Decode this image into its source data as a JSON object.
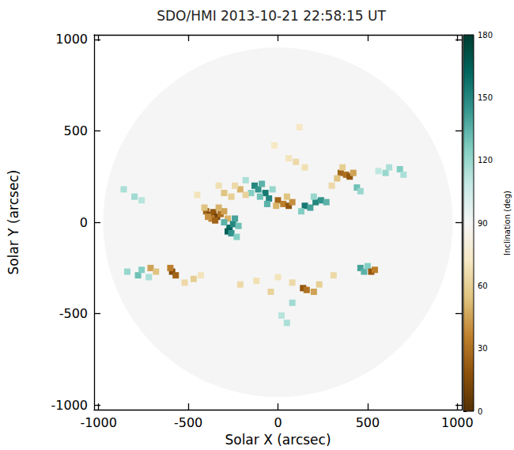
{
  "chart_data": {
    "type": "heatmap",
    "title": "SDO/HMI 2013-10-21 22:58:15 UT",
    "x_label": "Solar X (arcsec)",
    "y_label": "Solar Y (arcsec)",
    "xlim": [
      -1025,
      1025
    ],
    "ylim": [
      -1025,
      1025
    ],
    "xticks": [
      -1000,
      -500,
      0,
      500,
      1000
    ],
    "yticks": [
      -1000,
      -500,
      0,
      500,
      1000
    ],
    "disk": {
      "center": [
        0,
        0
      ],
      "radius": 965,
      "value": 90
    },
    "cells": [
      [
        -400,
        60,
        25
      ],
      [
        -380,
        40,
        15
      ],
      [
        -360,
        55,
        20
      ],
      [
        -340,
        30,
        10
      ],
      [
        -320,
        45,
        30
      ],
      [
        -370,
        20,
        35
      ],
      [
        -390,
        30,
        40
      ],
      [
        -350,
        10,
        25
      ],
      [
        -300,
        60,
        45
      ],
      [
        -330,
        80,
        50
      ],
      [
        -410,
        80,
        55
      ],
      [
        -280,
        20,
        50
      ],
      [
        -270,
        -30,
        160
      ],
      [
        -250,
        -10,
        150
      ],
      [
        -240,
        20,
        140
      ],
      [
        -280,
        -50,
        165
      ],
      [
        -260,
        -60,
        145
      ],
      [
        -220,
        -20,
        130
      ],
      [
        -300,
        0,
        135
      ],
      [
        -230,
        -80,
        125
      ],
      [
        -130,
        200,
        150
      ],
      [
        -110,
        180,
        145
      ],
      [
        -90,
        210,
        135
      ],
      [
        -70,
        160,
        155
      ],
      [
        -50,
        130,
        150
      ],
      [
        -60,
        100,
        135
      ],
      [
        -150,
        160,
        125
      ],
      [
        -100,
        140,
        130
      ],
      [
        -180,
        230,
        115
      ],
      [
        -30,
        180,
        120
      ],
      [
        0,
        120,
        25
      ],
      [
        30,
        100,
        35
      ],
      [
        60,
        90,
        20
      ],
      [
        80,
        110,
        40
      ],
      [
        -10,
        90,
        50
      ],
      [
        50,
        140,
        55
      ],
      [
        150,
        90,
        155
      ],
      [
        180,
        80,
        140
      ],
      [
        210,
        110,
        150
      ],
      [
        240,
        120,
        145
      ],
      [
        270,
        110,
        135
      ],
      [
        130,
        60,
        125
      ],
      [
        200,
        140,
        120
      ],
      [
        -300,
        160,
        55
      ],
      [
        -260,
        140,
        60
      ],
      [
        -210,
        180,
        50
      ],
      [
        -180,
        150,
        62
      ],
      [
        -240,
        200,
        65
      ],
      [
        -330,
        200,
        68
      ],
      [
        -450,
        150,
        70
      ],
      [
        350,
        270,
        25
      ],
      [
        380,
        260,
        30
      ],
      [
        400,
        250,
        20
      ],
      [
        420,
        270,
        45
      ],
      [
        330,
        240,
        55
      ],
      [
        300,
        200,
        65
      ],
      [
        360,
        300,
        60
      ],
      [
        440,
        190,
        130
      ],
      [
        460,
        170,
        120
      ],
      [
        600,
        270,
        120
      ],
      [
        620,
        300,
        115
      ],
      [
        680,
        290,
        125
      ],
      [
        700,
        260,
        115
      ],
      [
        560,
        280,
        110
      ],
      [
        100,
        330,
        65
      ],
      [
        150,
        300,
        68
      ],
      [
        60,
        350,
        70
      ],
      [
        120,
        520,
        72
      ],
      [
        -20,
        420,
        72
      ],
      [
        -860,
        180,
        115
      ],
      [
        -800,
        140,
        118
      ],
      [
        -760,
        120,
        112
      ],
      [
        -840,
        -270,
        120
      ],
      [
        -780,
        -290,
        130
      ],
      [
        -760,
        -260,
        125
      ],
      [
        -720,
        -300,
        115
      ],
      [
        -710,
        -250,
        45
      ],
      [
        -680,
        -270,
        55
      ],
      [
        -590,
        -270,
        15
      ],
      [
        -570,
        -290,
        25
      ],
      [
        -600,
        -250,
        35
      ],
      [
        -470,
        -310,
        60
      ],
      [
        -520,
        -330,
        65
      ],
      [
        -430,
        -290,
        70
      ],
      [
        140,
        -360,
        20
      ],
      [
        160,
        -370,
        30
      ],
      [
        200,
        -380,
        45
      ],
      [
        230,
        -340,
        60
      ],
      [
        310,
        -290,
        65
      ],
      [
        -40,
        -380,
        62
      ],
      [
        -210,
        -340,
        65
      ],
      [
        -120,
        -320,
        68
      ],
      [
        0,
        -300,
        70
      ],
      [
        80,
        -330,
        65
      ],
      [
        50,
        -550,
        115
      ],
      [
        20,
        -510,
        112
      ],
      [
        80,
        -440,
        118
      ],
      [
        460,
        -250,
        140
      ],
      [
        480,
        -270,
        135
      ],
      [
        500,
        -240,
        125
      ],
      [
        520,
        -270,
        20
      ],
      [
        540,
        -260,
        35
      ]
    ],
    "colorbar": {
      "label": "Inclination (deg)",
      "range": [
        0,
        180
      ],
      "ticks": [
        0,
        30,
        60,
        90,
        120,
        150,
        180
      ]
    }
  }
}
